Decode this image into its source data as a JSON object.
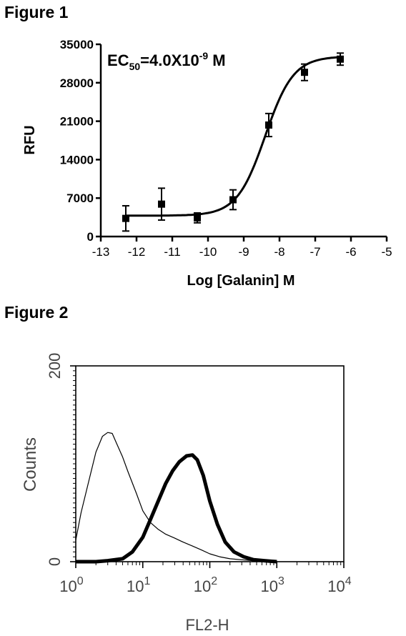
{
  "figure1": {
    "title": "Figure 1",
    "annotation": {
      "prefix": "EC",
      "sub": "50",
      "middle": "=4.0X10",
      "sup": "-9",
      "suffix": " M"
    },
    "chart_data": {
      "type": "scatter",
      "xlabel": "Log [Galanin] M",
      "ylabel": "RFU",
      "xlim": [
        -13,
        -5
      ],
      "ylim": [
        0,
        35000
      ],
      "x_ticks": [
        "-13",
        "-12",
        "-11",
        "-10",
        "-9",
        "-8",
        "-7",
        "-6",
        "-5"
      ],
      "y_ticks": [
        "0",
        "7000",
        "14000",
        "21000",
        "28000",
        "35000"
      ],
      "series": [
        {
          "x": [
            -12.3,
            -11.3,
            -10.3,
            -9.3,
            -8.3,
            -7.3,
            -6.3
          ],
          "y": [
            3300,
            5900,
            3400,
            6700,
            20300,
            29900,
            32300
          ],
          "err": [
            2300,
            2900,
            900,
            1800,
            2100,
            1500,
            1100
          ]
        }
      ],
      "fit": {
        "bottom": 3800,
        "top": 32800,
        "log_ec50": -8.4,
        "hill": 1.1
      }
    }
  },
  "figure2": {
    "title": "Figure 2",
    "chart_data": {
      "type": "area",
      "xlabel": "FL2-H",
      "ylabel": "Counts",
      "x_scale": "log",
      "xlim": [
        1,
        10000
      ],
      "ylim": [
        0,
        200
      ],
      "x_ticks": [
        {
          "base": "10",
          "exp": "0"
        },
        {
          "base": "10",
          "exp": "1"
        },
        {
          "base": "10",
          "exp": "2"
        },
        {
          "base": "10",
          "exp": "3"
        },
        {
          "base": "10",
          "exp": "4"
        }
      ],
      "y_ticks": [
        "0",
        "200"
      ],
      "series": [
        {
          "style": "thin",
          "x": [
            1,
            1.2,
            1.6,
            2,
            2.5,
            3,
            3.5,
            4,
            5,
            6,
            8,
            10,
            13,
            17,
            22,
            30,
            40,
            55,
            75,
            100,
            140,
            200,
            300,
            450,
            700
          ],
          "y": [
            22,
            50,
            85,
            112,
            128,
            132,
            131,
            122,
            107,
            92,
            70,
            52,
            40,
            33,
            28,
            24,
            20,
            16,
            12,
            8,
            5,
            3,
            2,
            1,
            0
          ]
        },
        {
          "style": "thick",
          "x": [
            1,
            2,
            3,
            5,
            7,
            10,
            13,
            17,
            22,
            28,
            35,
            45,
            55,
            65,
            80,
            100,
            130,
            170,
            230,
            320,
            450,
            650,
            1000
          ],
          "y": [
            0,
            0,
            1,
            3,
            10,
            25,
            43,
            62,
            80,
            93,
            102,
            108,
            109,
            104,
            88,
            62,
            38,
            20,
            10,
            5,
            2,
            1,
            0
          ]
        }
      ]
    }
  }
}
